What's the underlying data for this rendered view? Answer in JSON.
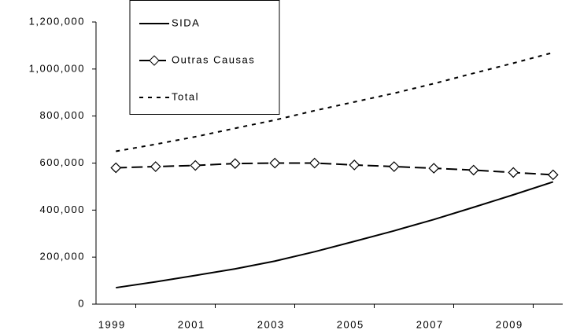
{
  "chart_data": {
    "type": "line",
    "x": [
      1999,
      2000,
      2001,
      2002,
      2003,
      2004,
      2005,
      2006,
      2007,
      2008,
      2009,
      2010
    ],
    "series": [
      {
        "name": "SIDA",
        "color": "#000000",
        "line_style": "solid",
        "marker": "none",
        "values": [
          70000,
          95000,
          122000,
          150000,
          183000,
          223000,
          267000,
          312000,
          360000,
          412000,
          465000,
          520000
        ]
      },
      {
        "name": "Outras Causas",
        "color": "#000000",
        "line_style": "dashed",
        "marker": "diamond",
        "values": [
          580000,
          585000,
          590000,
          598000,
          600000,
          600000,
          592000,
          585000,
          578000,
          570000,
          560000,
          550000
        ]
      },
      {
        "name": "Total",
        "color": "#000000",
        "line_style": "dotted",
        "marker": "none",
        "values": [
          650000,
          680000,
          712000,
          748000,
          783000,
          823000,
          860000,
          897000,
          938000,
          982000,
          1025000,
          1070000
        ]
      }
    ],
    "xlim": [
      1998.5,
      2010.5
    ],
    "xticks": [
      1999,
      2001,
      2003,
      2005,
      2007,
      2009
    ],
    "ylim": [
      0,
      1200000
    ],
    "yticks": [
      0,
      {
        "value": 200000,
        "label": "200,000"
      },
      {
        "value": 400000,
        "label": "400,000"
      },
      {
        "value": 600000,
        "label": "600,000"
      },
      {
        "value": 800000,
        "label": "800,000"
      },
      {
        "value": 1000000,
        "label": "1,000,000"
      },
      {
        "value": 1200000,
        "label": "1,200,000"
      }
    ],
    "grid": false,
    "legend": "upper left"
  }
}
